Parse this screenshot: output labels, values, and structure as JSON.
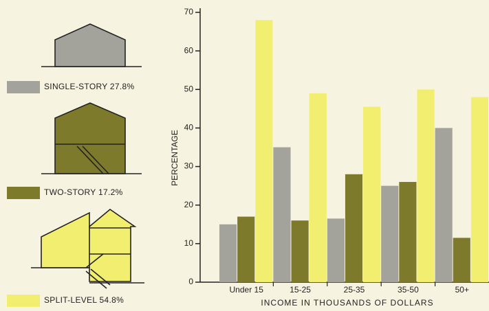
{
  "chart_data": {
    "type": "bar",
    "categories": [
      "Under 15",
      "15-25",
      "25-35",
      "35-50",
      "50+"
    ],
    "series": [
      {
        "name": "SINGLE-STORY 27.8%",
        "color": "#a4a39b",
        "values": [
          15,
          35,
          16.5,
          25,
          40
        ]
      },
      {
        "name": "TWO-STORY 17.2%",
        "color": "#7e7a2c",
        "values": [
          17,
          16,
          28,
          26,
          11.5
        ]
      },
      {
        "name": "SPLIT-LEVEL 54.8%",
        "color": "#f2ee70",
        "values": [
          68,
          49,
          45.5,
          50,
          48
        ]
      }
    ],
    "y_label": "PERCENTAGE",
    "x_label": "INCOME IN THOUSANDS OF DOLLARS",
    "ylim": [
      0,
      70
    ],
    "yticks": [
      0,
      10,
      20,
      30,
      40,
      50,
      60,
      70
    ],
    "grid": false
  }
}
